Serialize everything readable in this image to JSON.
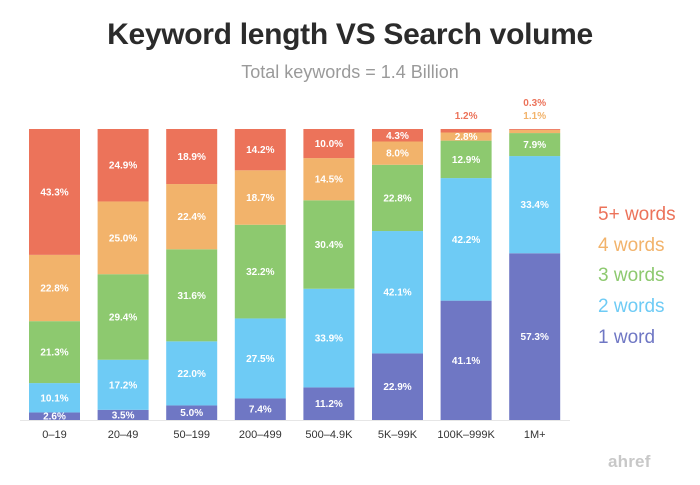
{
  "chart_data": {
    "type": "bar",
    "stacked": true,
    "title": "Keyword length VS Search volume",
    "subtitle": "Total keywords = 1.4 Billion",
    "xlabel": "",
    "ylabel": "",
    "ylim": [
      0,
      100
    ],
    "grid": false,
    "legend_position": "right",
    "categories": [
      "0–19",
      "20–49",
      "50–199",
      "200–499",
      "500–4.9K",
      "5K–99K",
      "100K–999K",
      "1M+"
    ],
    "series": [
      {
        "name": "1 word",
        "color": "#6f77c4",
        "values": [
          2.6,
          3.5,
          5.0,
          7.4,
          11.2,
          22.9,
          41.1,
          57.3
        ],
        "labels": [
          "2.6%",
          "3.5%",
          "5.0%",
          "7.4%",
          "11.2%",
          "22.9%",
          "41.1%",
          "57.3%"
        ]
      },
      {
        "name": "2 words",
        "color": "#6ecbf5",
        "values": [
          10.1,
          17.2,
          22.0,
          27.5,
          33.9,
          42.1,
          42.2,
          33.4
        ],
        "labels": [
          "10.1%",
          "17.2%",
          "22.0%",
          "27.5%",
          "33.9%",
          "42.1%",
          "42.2%",
          "33.4%"
        ]
      },
      {
        "name": "3 words",
        "color": "#8dc96f",
        "values": [
          21.3,
          29.4,
          31.6,
          32.2,
          30.4,
          22.8,
          12.9,
          7.9
        ],
        "labels": [
          "21.3%",
          "29.4%",
          "31.6%",
          "32.2%",
          "30.4%",
          "22.8%",
          "12.9%",
          "7.9%"
        ]
      },
      {
        "name": "4 words",
        "color": "#f2b36b",
        "values": [
          22.8,
          25.0,
          22.4,
          18.7,
          14.5,
          8.0,
          2.8,
          1.1
        ],
        "labels": [
          "22.8%",
          "25.0%",
          "22.4%",
          "18.7%",
          "14.5%",
          "8.0%",
          "2.8%",
          "1.1%"
        ]
      },
      {
        "name": "5+ words",
        "color": "#ec735a",
        "values": [
          43.3,
          24.9,
          18.9,
          14.2,
          10.0,
          4.3,
          1.2,
          0.3
        ],
        "labels": [
          "43.3%",
          "24.9%",
          "18.9%",
          "14.2%",
          "10.0%",
          "4.3%",
          "1.2%",
          "0.3%"
        ]
      }
    ],
    "legend": [
      {
        "label": "5+ words",
        "color": "#ec735a"
      },
      {
        "label": "4 words",
        "color": "#f2b36b"
      },
      {
        "label": "3 words",
        "color": "#8dc96f"
      },
      {
        "label": "2 words",
        "color": "#6ecbf5"
      },
      {
        "label": "1 word",
        "color": "#6f77c4"
      }
    ]
  },
  "watermark": "ahref"
}
